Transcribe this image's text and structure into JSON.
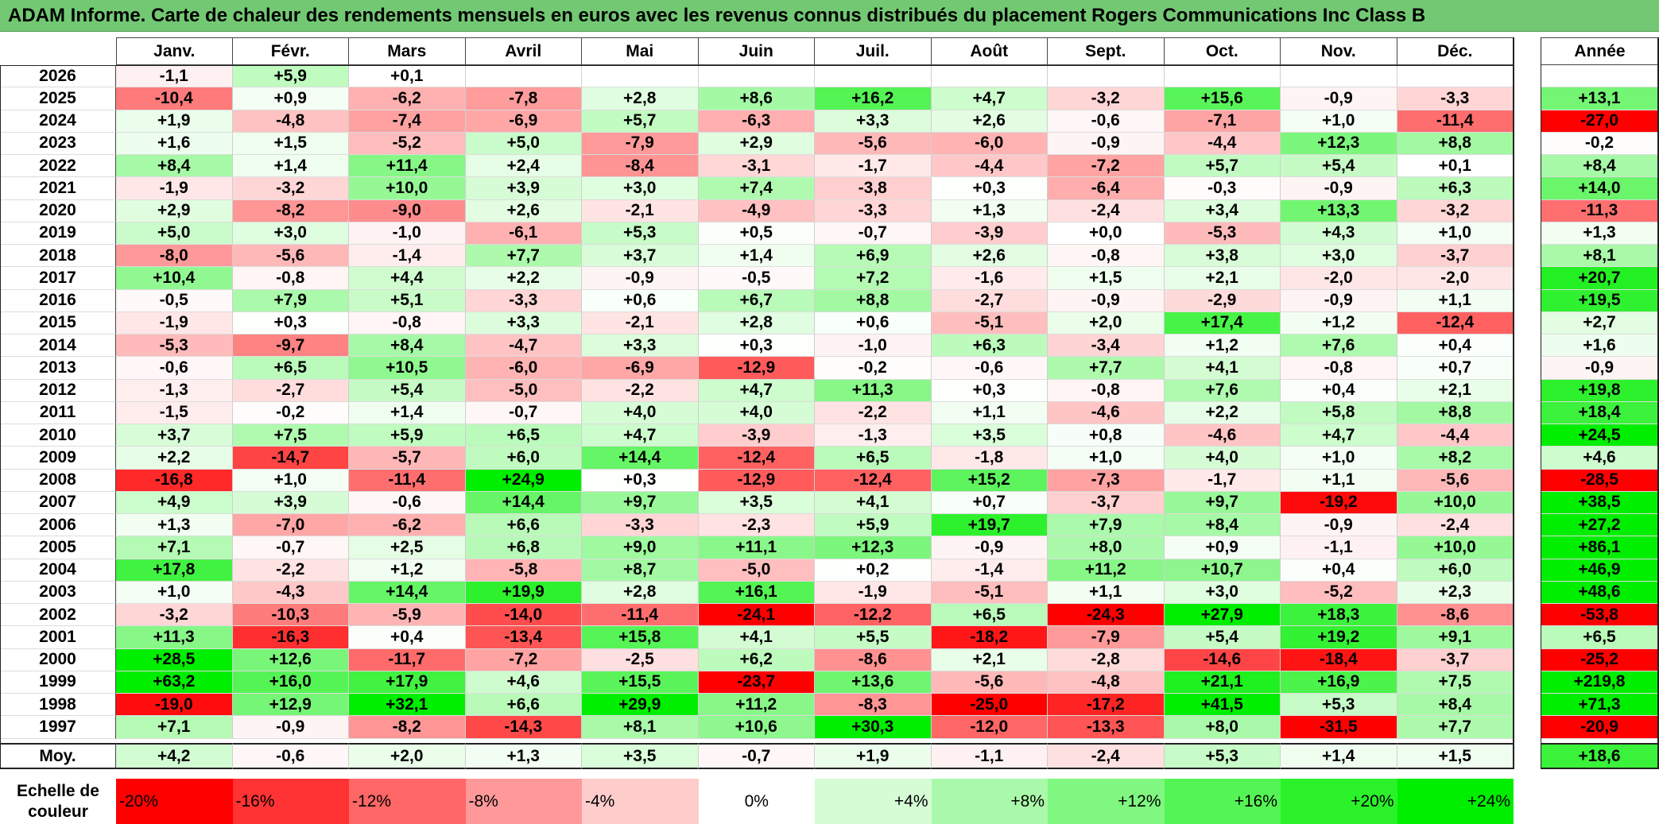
{
  "title": "ADAM Informe. Carte de chaleur des rendements mensuels en euros avec les revenus connus distribués du placement Rogers Communications Inc Class B",
  "chart_data": {
    "type": "heatmap",
    "title": "ADAM Informe. Carte de chaleur des rendements mensuels en euros avec les revenus connus distribués du placement Rogers Communications Inc Class B",
    "months": [
      "Janv.",
      "Févr.",
      "Mars",
      "Avril",
      "Mai",
      "Juin",
      "Juil.",
      "Août",
      "Sept.",
      "Oct.",
      "Nov.",
      "Déc."
    ],
    "year_header": "Année",
    "rows": [
      {
        "year": "2026",
        "months": [
          -1.1,
          5.9,
          0.1,
          null,
          null,
          null,
          null,
          null,
          null,
          null,
          null,
          null
        ],
        "annual": null
      },
      {
        "year": "2025",
        "months": [
          -10.4,
          0.9,
          -6.2,
          -7.8,
          2.8,
          8.6,
          16.2,
          4.7,
          -3.2,
          15.6,
          -0.9,
          -3.3
        ],
        "annual": 13.1
      },
      {
        "year": "2024",
        "months": [
          1.9,
          -4.8,
          -7.4,
          -6.9,
          5.7,
          -6.3,
          3.3,
          2.6,
          -0.6,
          -7.1,
          1.0,
          -11.4
        ],
        "annual": -27.0
      },
      {
        "year": "2023",
        "months": [
          1.6,
          1.5,
          -5.2,
          5.0,
          -7.9,
          2.9,
          -5.6,
          -6.0,
          -0.9,
          -4.4,
          12.3,
          8.8
        ],
        "annual": -0.2
      },
      {
        "year": "2022",
        "months": [
          8.4,
          1.4,
          11.4,
          2.4,
          -8.4,
          -3.1,
          -1.7,
          -4.4,
          -7.2,
          5.7,
          5.4,
          0.1
        ],
        "annual": 8.4
      },
      {
        "year": "2021",
        "months": [
          -1.9,
          -3.2,
          10.0,
          3.9,
          3.0,
          7.4,
          -3.8,
          0.3,
          -6.4,
          -0.3,
          -0.9,
          6.3
        ],
        "annual": 14.0
      },
      {
        "year": "2020",
        "months": [
          2.9,
          -8.2,
          -9.0,
          2.6,
          -2.1,
          -4.9,
          -3.3,
          1.3,
          -2.4,
          3.4,
          13.3,
          -3.2
        ],
        "annual": -11.3
      },
      {
        "year": "2019",
        "months": [
          5.0,
          3.0,
          -1.0,
          -6.1,
          5.3,
          0.5,
          -0.7,
          -3.9,
          0.0,
          -5.3,
          4.3,
          1.0
        ],
        "annual": 1.3
      },
      {
        "year": "2018",
        "months": [
          -8.0,
          -5.6,
          -1.4,
          7.7,
          3.7,
          1.4,
          6.9,
          2.6,
          -0.8,
          3.8,
          3.0,
          -3.7
        ],
        "annual": 8.1
      },
      {
        "year": "2017",
        "months": [
          10.4,
          -0.8,
          4.4,
          2.2,
          -0.9,
          -0.5,
          7.2,
          -1.6,
          1.5,
          2.1,
          -2.0,
          -2.0
        ],
        "annual": 20.7
      },
      {
        "year": "2016",
        "months": [
          -0.5,
          7.9,
          5.1,
          -3.3,
          0.6,
          6.7,
          8.8,
          -2.7,
          -0.9,
          -2.9,
          -0.9,
          1.1
        ],
        "annual": 19.5
      },
      {
        "year": "2015",
        "months": [
          -1.9,
          0.3,
          -0.8,
          3.3,
          -2.1,
          2.8,
          0.6,
          -5.1,
          2.0,
          17.4,
          1.2,
          -12.4
        ],
        "annual": 2.7
      },
      {
        "year": "2014",
        "months": [
          -5.3,
          -9.7,
          8.4,
          -4.7,
          3.3,
          0.3,
          -1.0,
          6.3,
          -3.4,
          1.2,
          7.6,
          0.4
        ],
        "annual": 1.6
      },
      {
        "year": "2013",
        "months": [
          -0.6,
          6.5,
          10.5,
          -6.0,
          -6.9,
          -12.9,
          -0.2,
          -0.6,
          7.7,
          4.1,
          -0.8,
          0.7
        ],
        "annual": -0.9
      },
      {
        "year": "2012",
        "months": [
          -1.3,
          -2.7,
          5.4,
          -5.0,
          -2.2,
          4.7,
          11.3,
          0.3,
          -0.8,
          7.6,
          0.4,
          2.1
        ],
        "annual": 19.8
      },
      {
        "year": "2011",
        "months": [
          -1.5,
          -0.2,
          1.4,
          -0.7,
          4.0,
          4.0,
          -2.2,
          1.1,
          -4.6,
          2.2,
          5.8,
          8.8
        ],
        "annual": 18.4
      },
      {
        "year": "2010",
        "months": [
          3.7,
          7.5,
          5.9,
          6.5,
          4.7,
          -3.9,
          -1.3,
          3.5,
          0.8,
          -4.6,
          4.7,
          -4.4
        ],
        "annual": 24.5
      },
      {
        "year": "2009",
        "months": [
          2.2,
          -14.7,
          -5.7,
          6.0,
          14.4,
          -12.4,
          6.5,
          -1.8,
          1.0,
          4.0,
          1.0,
          8.2
        ],
        "annual": 4.6
      },
      {
        "year": "2008",
        "months": [
          -16.8,
          1.0,
          -11.4,
          24.9,
          0.3,
          -12.9,
          -12.4,
          15.2,
          -7.3,
          -1.7,
          1.1,
          -5.6
        ],
        "annual": -28.5
      },
      {
        "year": "2007",
        "months": [
          4.9,
          3.9,
          -0.6,
          14.4,
          9.7,
          3.5,
          4.1,
          0.7,
          -3.7,
          9.7,
          -19.2,
          10.0
        ],
        "annual": 38.5
      },
      {
        "year": "2006",
        "months": [
          1.3,
          -7.0,
          -6.2,
          6.6,
          -3.3,
          -2.3,
          5.9,
          19.7,
          7.9,
          8.4,
          -0.9,
          -2.4
        ],
        "annual": 27.2
      },
      {
        "year": "2005",
        "months": [
          7.1,
          -0.7,
          2.5,
          6.8,
          9.0,
          11.1,
          12.3,
          -0.9,
          8.0,
          0.9,
          -1.1,
          10.0
        ],
        "annual": 86.1
      },
      {
        "year": "2004",
        "months": [
          17.8,
          -2.2,
          1.2,
          -5.8,
          8.7,
          -5.0,
          0.2,
          -1.4,
          11.2,
          10.7,
          0.4,
          6.0
        ],
        "annual": 46.9
      },
      {
        "year": "2003",
        "months": [
          1.0,
          -4.3,
          14.4,
          19.9,
          2.8,
          16.1,
          -1.9,
          -5.1,
          1.1,
          3.0,
          -5.2,
          2.3
        ],
        "annual": 48.6
      },
      {
        "year": "2002",
        "months": [
          -3.2,
          -10.3,
          -5.9,
          -14.0,
          -11.4,
          -24.1,
          -12.2,
          6.5,
          -24.3,
          27.9,
          18.3,
          -8.6
        ],
        "annual": -53.8
      },
      {
        "year": "2001",
        "months": [
          11.3,
          -16.3,
          0.4,
          -13.4,
          15.8,
          4.1,
          5.5,
          -18.2,
          -7.9,
          5.4,
          19.2,
          9.1
        ],
        "annual": 6.5
      },
      {
        "year": "2000",
        "months": [
          28.5,
          12.6,
          -11.7,
          -7.2,
          -2.5,
          6.2,
          -8.6,
          2.1,
          -2.8,
          -14.6,
          -18.4,
          -3.7
        ],
        "annual": -25.2
      },
      {
        "year": "1999",
        "months": [
          63.2,
          16.0,
          17.9,
          4.6,
          15.5,
          -23.7,
          13.6,
          -5.6,
          -4.8,
          21.1,
          16.9,
          7.5
        ],
        "annual": 219.8
      },
      {
        "year": "1998",
        "months": [
          -19.0,
          12.9,
          32.1,
          6.6,
          29.9,
          11.2,
          -8.3,
          -25.0,
          -17.2,
          41.5,
          5.3,
          8.4
        ],
        "annual": 71.3
      },
      {
        "year": "1997",
        "months": [
          7.1,
          -0.9,
          -8.2,
          -14.3,
          8.1,
          10.6,
          30.3,
          -12.0,
          -13.3,
          8.0,
          -31.5,
          7.7
        ],
        "annual": -20.9
      }
    ],
    "average": {
      "label": "Moy.",
      "months": [
        4.2,
        -0.6,
        2.0,
        1.3,
        3.5,
        -0.7,
        1.9,
        -1.1,
        -2.4,
        5.3,
        1.4,
        1.5
      ],
      "annual": 18.6
    },
    "scale": {
      "label": "Echelle de couleur",
      "steps": [
        {
          "value": -20,
          "label": "-20%"
        },
        {
          "value": -16,
          "label": "-16%"
        },
        {
          "value": -12,
          "label": "-12%"
        },
        {
          "value": -8,
          "label": "-8%"
        },
        {
          "value": -4,
          "label": "-4%"
        },
        {
          "value": 0,
          "label": "0%"
        },
        {
          "value": 4,
          "label": "+4%"
        },
        {
          "value": 8,
          "label": "+8%"
        },
        {
          "value": 12,
          "label": "+12%"
        },
        {
          "value": 16,
          "label": "+16%"
        },
        {
          "value": 20,
          "label": "+20%"
        },
        {
          "value": 24,
          "label": "+24%"
        }
      ]
    },
    "colors": {
      "negative_max": "#ff0000",
      "neutral": "#ffffff",
      "positive_max": "#00ee00"
    }
  }
}
